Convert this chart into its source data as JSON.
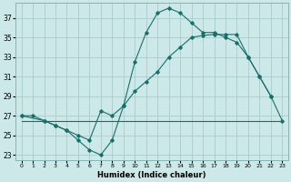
{
  "xlabel": "Humidex (Indice chaleur)",
  "bg_color": "#cce8e8",
  "line_color": "#1a6e6a",
  "grid_color": "#aacccc",
  "xlim": [
    -0.5,
    23.5
  ],
  "ylim": [
    22.5,
    38.5
  ],
  "xticks": [
    0,
    1,
    2,
    3,
    4,
    5,
    6,
    7,
    8,
    9,
    10,
    11,
    12,
    13,
    14,
    15,
    16,
    17,
    18,
    19,
    20,
    21,
    22,
    23
  ],
  "yticks": [
    23,
    25,
    27,
    29,
    31,
    33,
    35,
    37
  ],
  "curve1_x": [
    0,
    1,
    2,
    3,
    4,
    5,
    6,
    7,
    8,
    9,
    10,
    11,
    12,
    13,
    14,
    15,
    16,
    17,
    18,
    19,
    20,
    21,
    22
  ],
  "curve1_y": [
    27,
    27,
    26.5,
    26,
    25.5,
    24.5,
    23.5,
    23,
    24.5,
    28,
    32.5,
    35.5,
    37.5,
    38,
    37.5,
    36.5,
    35.5,
    35.5,
    35,
    34.5,
    33,
    31,
    29
  ],
  "curve2_x": [
    0,
    2,
    3,
    4,
    5,
    6,
    7,
    8,
    9,
    10,
    11,
    12,
    13,
    14,
    15,
    16,
    17,
    18,
    19,
    20,
    21,
    22,
    23
  ],
  "curve2_y": [
    27,
    26.5,
    26,
    25.5,
    25,
    24.5,
    27.5,
    27,
    28,
    29.5,
    30.5,
    31.5,
    33,
    34,
    35,
    35.2,
    35.3,
    35.3,
    35.3,
    33,
    31,
    29,
    26.5
  ],
  "flat_x": [
    0,
    1,
    2,
    3,
    4,
    5,
    6,
    7,
    8,
    9,
    10,
    11,
    12,
    13,
    14,
    15,
    16,
    17,
    18,
    19,
    20,
    21,
    22,
    23
  ],
  "flat_y": [
    26.5,
    26.5,
    26.5,
    26.5,
    26.5,
    26.5,
    26.5,
    26.5,
    26.5,
    26.5,
    26.5,
    26.5,
    26.5,
    26.5,
    26.5,
    26.5,
    26.5,
    26.5,
    26.5,
    26.5,
    26.5,
    26.5,
    26.5,
    26.5
  ]
}
